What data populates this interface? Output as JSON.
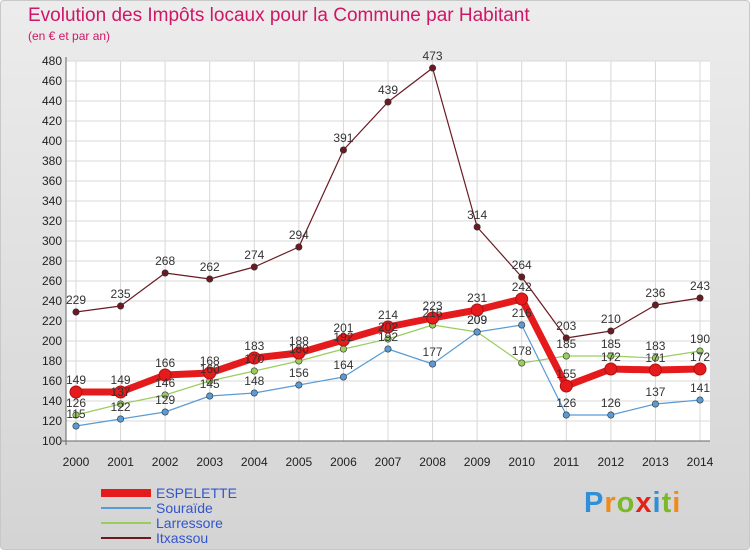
{
  "title": "Evolution des Impôts locaux pour la Commune par Habitant",
  "subtitle": "(en € et par an)",
  "logo": {
    "letters": [
      "P",
      "r",
      "o",
      "x",
      "i",
      "t",
      "i"
    ],
    "colors": [
      "#2f8fd8",
      "#f08a1a",
      "#7bb928",
      "#e2231a",
      "#2f8fd8",
      "#7bb928",
      "#f08a1a"
    ]
  },
  "chart_data": {
    "type": "line",
    "title": "Evolution des Impôts locaux pour la Commune par Habitant",
    "subtitle": "(en € et par an)",
    "x": [
      "2000",
      "2001",
      "2002",
      "2003",
      "2004",
      "2005",
      "2006",
      "2007",
      "2008",
      "2009",
      "2010",
      "2011",
      "2012",
      "2013",
      "2014"
    ],
    "ylim": [
      100,
      480
    ],
    "yticks": [
      100,
      120,
      140,
      160,
      180,
      200,
      220,
      240,
      260,
      280,
      300,
      320,
      340,
      360,
      380,
      400,
      420,
      440,
      460,
      480
    ],
    "grid": true,
    "legend": "bottom-left",
    "series": [
      {
        "name": "ESPELETTE",
        "color": "#e41a1c",
        "values": [
          149,
          149,
          166,
          168,
          183,
          188,
          201,
          214,
          223,
          231,
          242,
          155,
          172,
          171,
          172
        ],
        "labels": [
          "149",
          "149",
          "166",
          "168",
          "183",
          "188",
          "201",
          "214",
          "223",
          "231",
          "242",
          "155",
          "172",
          "171",
          "172"
        ]
      },
      {
        "name": "Souraïde",
        "color": "#5b9bd5",
        "values": [
          115,
          122,
          129,
          145,
          148,
          156,
          164,
          192,
          177,
          209,
          216,
          126,
          126,
          137,
          141
        ],
        "labels": [
          "115",
          "122",
          "129",
          "145",
          "148",
          "156",
          "164",
          "192",
          "177",
          "209",
          "216",
          "126",
          "126",
          "137",
          "141"
        ]
      },
      {
        "name": "Larressore",
        "color": "#9acd60",
        "values": [
          126,
          137,
          146,
          160,
          170,
          180,
          192,
          202,
          216,
          209,
          178,
          185,
          185,
          183,
          190
        ],
        "labels": [
          "126",
          "137",
          "146",
          "160",
          "170",
          "180",
          "192",
          "202",
          "216",
          "209",
          "178",
          "185",
          "185",
          "183",
          "190"
        ]
      },
      {
        "name": "Itxassou",
        "color": "#6b1a22",
        "values": [
          229,
          235,
          268,
          262,
          274,
          294,
          391,
          439,
          473,
          314,
          264,
          203,
          210,
          236,
          243
        ],
        "labels": [
          "229",
          "235",
          "268",
          "262",
          "274",
          "294",
          "391",
          "439",
          "473",
          "314",
          "264",
          "203",
          "210",
          "236",
          "243"
        ]
      }
    ]
  }
}
